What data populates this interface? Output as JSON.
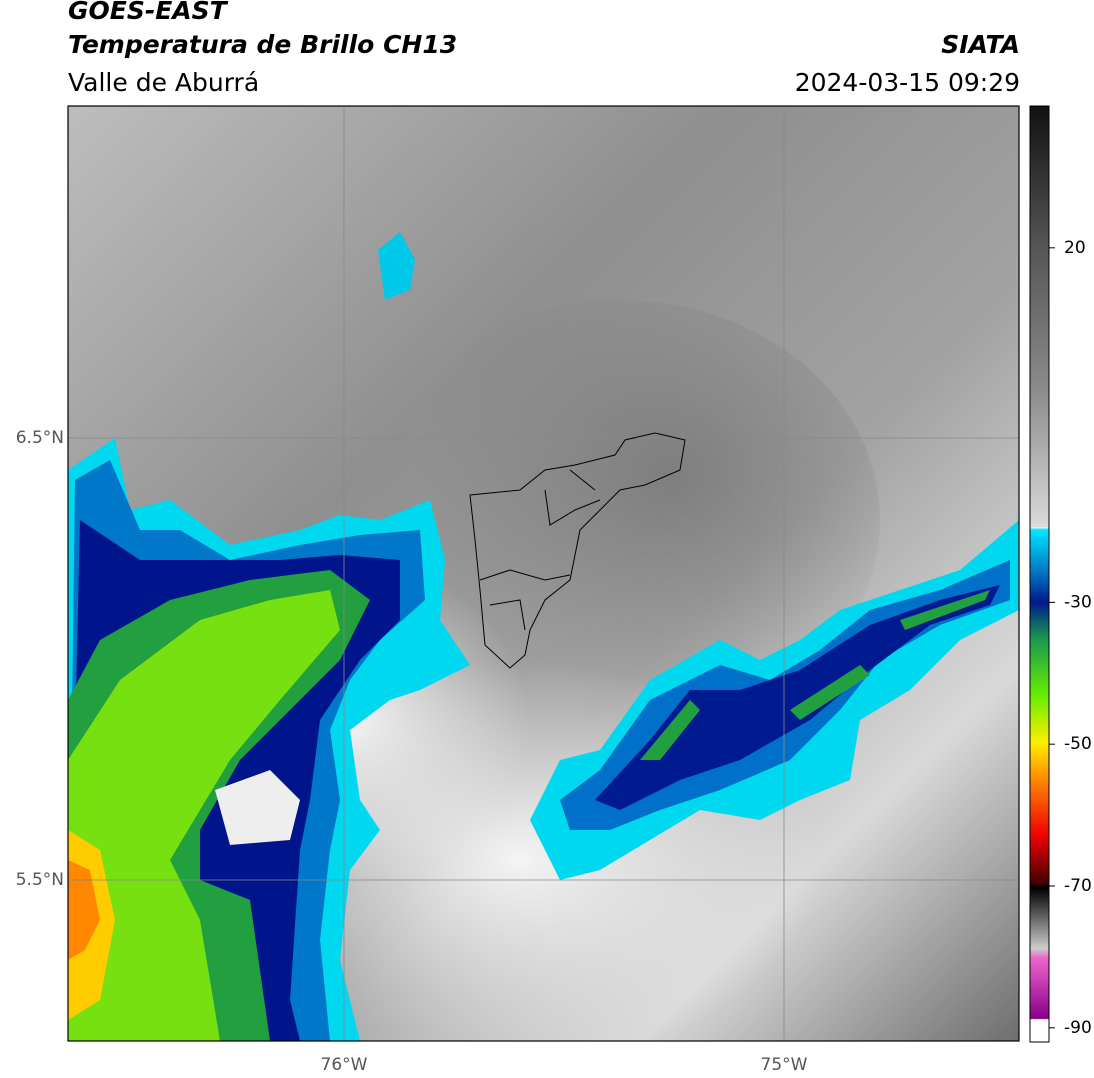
{
  "header": {
    "title": "GOES-EAST",
    "subtitle": "Temperatura de Brillo CH13",
    "region": "Valle de Aburrá",
    "source": "SIATA",
    "timestamp": "2024-03-15 09:29"
  },
  "map": {
    "lat_labels": [
      "6.5°N",
      "5.5°N"
    ],
    "lon_labels": [
      "76°W",
      "75°W"
    ]
  },
  "colorbar": {
    "lim": [
      -92,
      40
    ],
    "ticks": [
      20,
      -30,
      -50,
      -70,
      -90
    ]
  }
}
